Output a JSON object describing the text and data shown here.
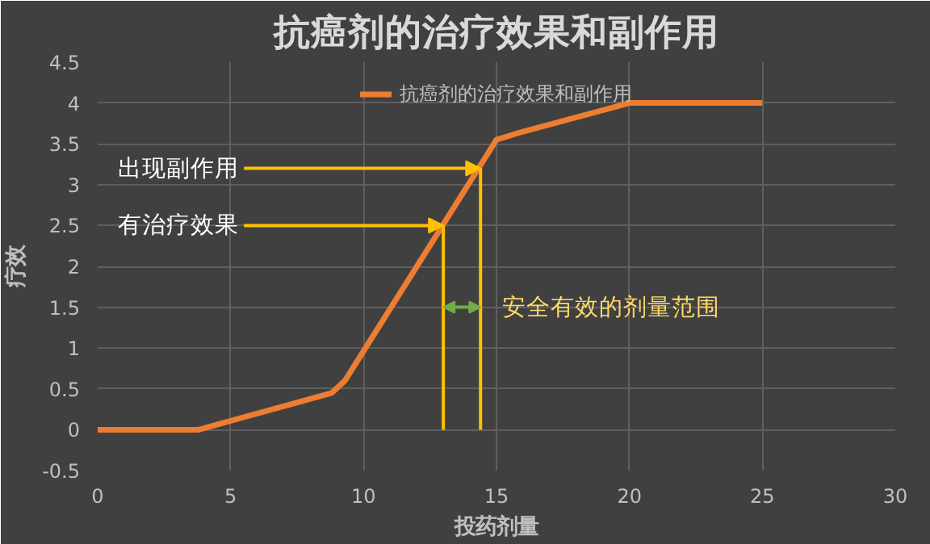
{
  "chart_data": {
    "type": "line",
    "title": "抗癌剂的治疗效果和副作用",
    "xlabel": "投药剂量",
    "ylabel": "疗效",
    "x": [
      0,
      3.8,
      8.8,
      9.3,
      15,
      16,
      20,
      25
    ],
    "series": [
      {
        "name": "抗癌剂的治疗效果和副作用",
        "color": "#ed7d31",
        "values": [
          0,
          0,
          0.45,
          0.6,
          3.55,
          3.65,
          4,
          4
        ]
      }
    ],
    "xlim": [
      0,
      30
    ],
    "xticks": [
      0,
      5,
      10,
      15,
      20,
      25,
      30
    ],
    "ylim": [
      -0.5,
      4.5
    ],
    "yticks": [
      -0.5,
      0,
      0.5,
      1,
      1.5,
      2,
      2.5,
      3,
      3.5,
      4,
      4.5
    ],
    "annotations": [
      {
        "text": "有治疗效果",
        "x": 13,
        "y": 2.5
      },
      {
        "text": "出现副作用",
        "x": 14.4,
        "y": 3.2
      },
      "安全有效的剂量范围"
    ],
    "ref_lines": [
      {
        "axis": "x",
        "value": 13,
        "color": "#ffc000"
      },
      {
        "axis": "x",
        "value": 14.4,
        "color": "#ffc000"
      }
    ],
    "grid": true,
    "legend": "top",
    "marker": "none",
    "line_style": "solid"
  }
}
